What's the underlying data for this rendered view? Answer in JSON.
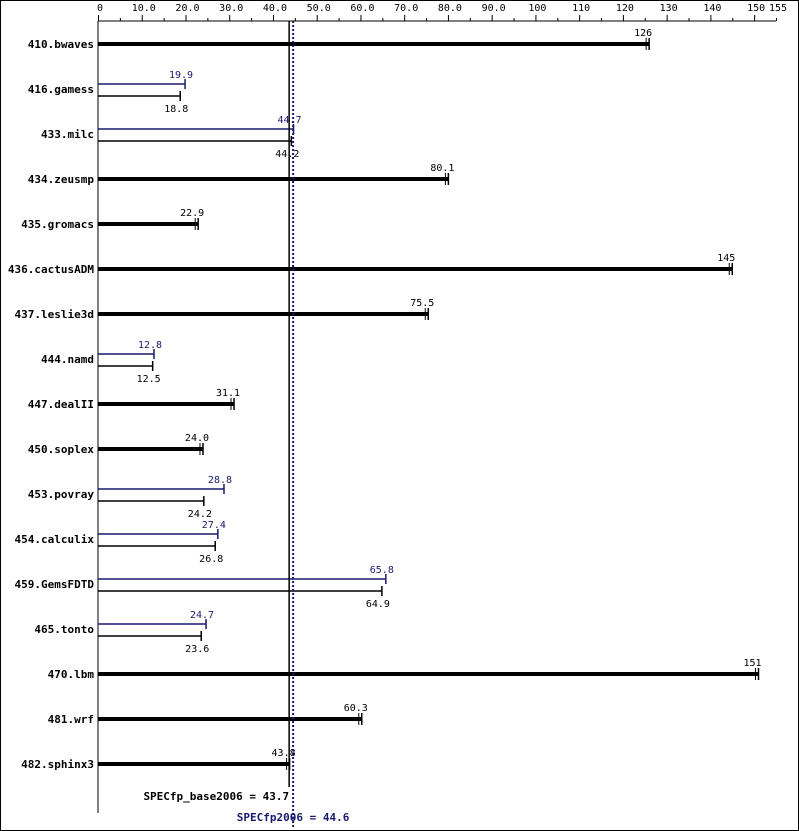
{
  "colors": {
    "base": "#000000",
    "peak": "#191970",
    "axis": "#000000",
    "background": "#ffffff"
  },
  "chart_data": {
    "type": "bar",
    "orientation": "horizontal",
    "xlim": [
      0,
      155
    ],
    "x_ticks": [
      {
        "value": 0,
        "label": "0"
      },
      {
        "value": 10,
        "label": "10.0"
      },
      {
        "value": 20,
        "label": "20.0"
      },
      {
        "value": 30,
        "label": "30.0"
      },
      {
        "value": 40,
        "label": "40.0"
      },
      {
        "value": 50,
        "label": "50.0"
      },
      {
        "value": 60,
        "label": "60.0"
      },
      {
        "value": 70,
        "label": "70.0"
      },
      {
        "value": 80,
        "label": "80.0"
      },
      {
        "value": 90,
        "label": "90.0"
      },
      {
        "value": 100,
        "label": "100"
      },
      {
        "value": 110,
        "label": "110"
      },
      {
        "value": 120,
        "label": "120"
      },
      {
        "value": 130,
        "label": "130"
      },
      {
        "value": 140,
        "label": "140"
      },
      {
        "value": 150,
        "label": "150"
      },
      {
        "value": 155,
        "label": "155"
      }
    ],
    "benchmarks": [
      {
        "name": "410.bwaves",
        "base": 126,
        "base_label": "126",
        "peak": null,
        "peak_label": ""
      },
      {
        "name": "416.gamess",
        "base": 18.8,
        "base_label": "18.8",
        "peak": 19.9,
        "peak_label": "19.9"
      },
      {
        "name": "433.milc",
        "base": 44.2,
        "base_label": "44.2",
        "peak": 44.7,
        "peak_label": "44.7"
      },
      {
        "name": "434.zeusmp",
        "base": 80.1,
        "base_label": "80.1",
        "peak": null,
        "peak_label": ""
      },
      {
        "name": "435.gromacs",
        "base": 22.9,
        "base_label": "22.9",
        "peak": null,
        "peak_label": ""
      },
      {
        "name": "436.cactusADM",
        "base": 145,
        "base_label": "145",
        "peak": null,
        "peak_label": ""
      },
      {
        "name": "437.leslie3d",
        "base": 75.5,
        "base_label": "75.5",
        "peak": null,
        "peak_label": ""
      },
      {
        "name": "444.namd",
        "base": 12.5,
        "base_label": "12.5",
        "peak": 12.8,
        "peak_label": "12.8"
      },
      {
        "name": "447.dealII",
        "base": 31.1,
        "base_label": "31.1",
        "peak": null,
        "peak_label": ""
      },
      {
        "name": "450.soplex",
        "base": 24.0,
        "base_label": "24.0",
        "peak": null,
        "peak_label": ""
      },
      {
        "name": "453.povray",
        "base": 24.2,
        "base_label": "24.2",
        "peak": 28.8,
        "peak_label": "28.8"
      },
      {
        "name": "454.calculix",
        "base": 26.8,
        "base_label": "26.8",
        "peak": 27.4,
        "peak_label": "27.4"
      },
      {
        "name": "459.GemsFDTD",
        "base": 64.9,
        "base_label": "64.9",
        "peak": 65.8,
        "peak_label": "65.8"
      },
      {
        "name": "465.tonto",
        "base": 23.6,
        "base_label": "23.6",
        "peak": 24.7,
        "peak_label": "24.7"
      },
      {
        "name": "470.lbm",
        "base": 151,
        "base_label": "151",
        "peak": null,
        "peak_label": ""
      },
      {
        "name": "481.wrf",
        "base": 60.3,
        "base_label": "60.3",
        "peak": null,
        "peak_label": ""
      },
      {
        "name": "482.sphinx3",
        "base": 43.8,
        "base_label": "43.8",
        "peak": null,
        "peak_label": ""
      }
    ],
    "summary": {
      "base_value": 43.7,
      "base_label": "SPECfp_base2006 = 43.7",
      "peak_value": 44.6,
      "peak_label": "SPECfp2006 = 44.6"
    }
  }
}
